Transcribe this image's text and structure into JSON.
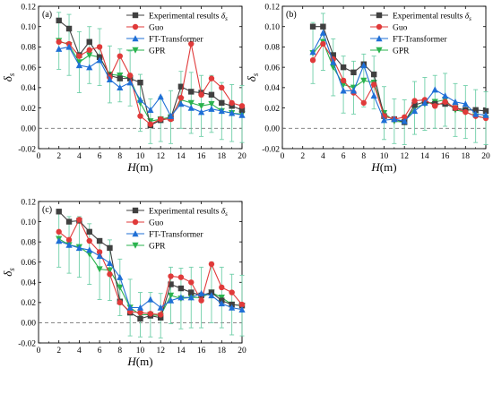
{
  "chart_data": [
    {
      "type": "line",
      "panel_label": "(a)",
      "xlabel": "H(m)",
      "ylabel": "δs",
      "xlim": [
        0,
        20
      ],
      "ylim": [
        -0.02,
        0.12
      ],
      "xticks": [
        0,
        2,
        4,
        6,
        8,
        10,
        12,
        14,
        16,
        18,
        20
      ],
      "yticks": [
        -0.02,
        0.0,
        0.02,
        0.04,
        0.06,
        0.08,
        0.1,
        0.12
      ],
      "ytick_labels": [
        "-0.02",
        "0.00",
        "0.02",
        "0.04",
        "0.06",
        "0.08",
        "0.10",
        "0.12"
      ],
      "legend_position": "top-right",
      "reference_line_y": 0,
      "x": [
        2,
        3,
        4,
        5,
        6,
        7,
        8,
        9,
        10,
        11,
        12,
        13,
        14,
        15,
        16,
        17,
        18,
        19,
        20
      ],
      "series": [
        {
          "name": "Experimental results δs",
          "color": "#404040",
          "marker": "square",
          "values": [
            0.106,
            0.098,
            0.072,
            0.085,
            0.07,
            0.052,
            0.049,
            0.049,
            0.045,
            0.003,
            0.008,
            0.01,
            0.041,
            0.036,
            0.035,
            0.033,
            0.025,
            0.022,
            0.018
          ]
        },
        {
          "name": "Guo",
          "color": "#e03a3a",
          "marker": "circle",
          "values": [
            0.085,
            0.083,
            0.071,
            0.077,
            0.08,
            0.05,
            0.071,
            0.052,
            0.012,
            0.004,
            0.009,
            0.009,
            0.03,
            0.083,
            0.033,
            0.049,
            0.04,
            0.025,
            0.022
          ]
        },
        {
          "name": "FT-Transformer",
          "color": "#1f6fd6",
          "marker": "triangle-up",
          "values": [
            0.078,
            0.08,
            0.062,
            0.06,
            0.067,
            0.048,
            0.04,
            0.045,
            0.028,
            0.018,
            0.031,
            0.012,
            0.024,
            0.02,
            0.016,
            0.019,
            0.017,
            0.015,
            0.013
          ]
        },
        {
          "name": "GPR",
          "color": "#2bb34f",
          "marker": "triangle-down",
          "errorbar_color": "#6fcfa8",
          "values": [
            0.086,
            0.082,
            0.065,
            0.072,
            0.07,
            0.053,
            0.052,
            0.049,
            0.025,
            0.007,
            0.009,
            0.011,
            0.028,
            0.025,
            0.022,
            0.024,
            0.017,
            0.015,
            0.014
          ],
          "error": [
            0.028,
            0.03,
            0.03,
            0.028,
            0.028,
            0.028,
            0.026,
            0.027,
            0.028,
            0.022,
            0.022,
            0.026,
            0.028,
            0.03,
            0.03,
            0.028,
            0.028,
            0.028,
            0.028
          ]
        }
      ]
    },
    {
      "type": "line",
      "panel_label": "(b)",
      "xlabel": "H(m)",
      "ylabel": "δs",
      "xlim": [
        0,
        20
      ],
      "ylim": [
        -0.02,
        0.12
      ],
      "xticks": [
        0,
        2,
        4,
        6,
        8,
        10,
        12,
        14,
        16,
        18,
        20
      ],
      "yticks": [
        -0.02,
        0.0,
        0.02,
        0.04,
        0.06,
        0.08,
        0.1,
        0.12
      ],
      "ytick_labels": [
        "-0.02",
        "0.00",
        "0.02",
        "0.04",
        "0.06",
        "0.08",
        "0.10",
        "0.12"
      ],
      "legend_position": "top-right",
      "reference_line_y": 0,
      "x": [
        3,
        4,
        5,
        6,
        7,
        8,
        9,
        10,
        11,
        12,
        13,
        14,
        15,
        16,
        17,
        18,
        19,
        20
      ],
      "series": [
        {
          "name": "Experimental results δs",
          "color": "#404040",
          "marker": "square",
          "values": [
            0.1,
            0.1,
            0.072,
            0.06,
            0.055,
            0.063,
            0.053,
            0.012,
            0.009,
            0.006,
            0.023,
            0.026,
            0.024,
            0.024,
            0.02,
            0.018,
            0.018,
            0.017
          ]
        },
        {
          "name": "Guo",
          "color": "#e03a3a",
          "marker": "circle",
          "values": [
            0.067,
            0.083,
            0.068,
            0.047,
            0.035,
            0.025,
            0.043,
            0.012,
            0.009,
            0.011,
            0.027,
            0.028,
            0.022,
            0.026,
            0.02,
            0.016,
            0.012,
            0.01
          ]
        },
        {
          "name": "FT-Transformer",
          "color": "#1f6fd6",
          "marker": "triangle-up",
          "values": [
            0.075,
            0.094,
            0.065,
            0.037,
            0.037,
            0.062,
            0.032,
            0.008,
            0.009,
            0.007,
            0.017,
            0.025,
            0.038,
            0.032,
            0.026,
            0.024,
            0.014,
            0.013
          ]
        },
        {
          "name": "GPR",
          "color": "#2bb34f",
          "marker": "triangle-down",
          "errorbar_color": "#6fcfa8",
          "values": [
            0.074,
            0.085,
            0.06,
            0.043,
            0.04,
            0.047,
            0.045,
            0.015,
            0.007,
            0.006,
            0.02,
            0.024,
            0.026,
            0.028,
            0.018,
            0.016,
            0.012,
            0.01
          ],
          "error": [
            0.03,
            0.028,
            0.028,
            0.028,
            0.026,
            0.026,
            0.026,
            0.026,
            0.022,
            0.022,
            0.026,
            0.026,
            0.026,
            0.026,
            0.026,
            0.026,
            0.026,
            0.026
          ]
        }
      ]
    },
    {
      "type": "line",
      "panel_label": "(c)",
      "xlabel": "H(m)",
      "ylabel": "δs",
      "xlim": [
        0,
        20
      ],
      "ylim": [
        -0.02,
        0.12
      ],
      "xticks": [
        0,
        2,
        4,
        6,
        8,
        10,
        12,
        14,
        16,
        18,
        20
      ],
      "yticks": [
        -0.02,
        0.0,
        0.02,
        0.04,
        0.06,
        0.08,
        0.1,
        0.12
      ],
      "ytick_labels": [
        "-0.02",
        "0.00",
        "0.02",
        "0.04",
        "0.06",
        "0.08",
        "0.10",
        "0.12"
      ],
      "legend_position": "top-right",
      "reference_line_y": 0,
      "x": [
        2,
        3,
        4,
        5,
        6,
        7,
        8,
        9,
        10,
        11,
        12,
        13,
        14,
        15,
        16,
        17,
        18,
        19,
        20
      ],
      "series": [
        {
          "name": "Experimental results δs",
          "color": "#404040",
          "marker": "square",
          "values": [
            0.11,
            0.1,
            0.101,
            0.09,
            0.081,
            0.074,
            0.021,
            0.01,
            0.004,
            0.007,
            0.005,
            0.038,
            0.034,
            0.03,
            0.027,
            0.03,
            0.022,
            0.018,
            0.017
          ]
        },
        {
          "name": "Guo",
          "color": "#e03a3a",
          "marker": "circle",
          "values": [
            0.09,
            0.082,
            0.102,
            0.081,
            0.07,
            0.048,
            0.02,
            0.011,
            0.01,
            0.009,
            0.008,
            0.046,
            0.045,
            0.04,
            0.022,
            0.058,
            0.035,
            0.03,
            0.018
          ]
        },
        {
          "name": "FT-Transformer",
          "color": "#1f6fd6",
          "marker": "triangle-up",
          "values": [
            0.081,
            0.077,
            0.074,
            0.072,
            0.066,
            0.059,
            0.045,
            0.015,
            0.015,
            0.023,
            0.015,
            0.022,
            0.025,
            0.025,
            0.029,
            0.027,
            0.019,
            0.015,
            0.013
          ]
        },
        {
          "name": "GPR",
          "color": "#2bb34f",
          "marker": "triangle-down",
          "errorbar_color": "#6fcfa8",
          "values": [
            0.083,
            0.077,
            0.075,
            0.068,
            0.053,
            0.052,
            0.035,
            0.015,
            0.008,
            0.008,
            0.007,
            0.027,
            0.024,
            0.025,
            0.025,
            0.03,
            0.025,
            0.018,
            0.017
          ],
          "error": [
            0.028,
            0.028,
            0.03,
            0.03,
            0.03,
            0.03,
            0.028,
            0.028,
            0.022,
            0.022,
            0.022,
            0.028,
            0.03,
            0.03,
            0.03,
            0.03,
            0.03,
            0.03,
            0.03
          ]
        }
      ]
    }
  ]
}
